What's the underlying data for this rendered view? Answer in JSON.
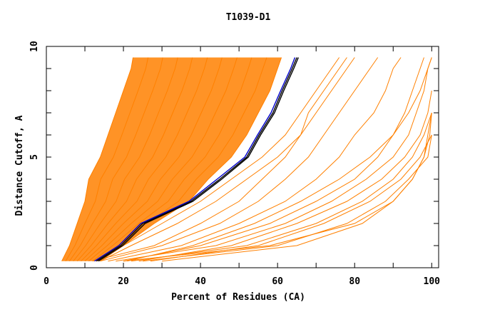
{
  "chart_data": {
    "type": "line",
    "title": "T1039-D1",
    "xlabel": "Percent of Residues (CA)",
    "ylabel": "Distance Cutoff, A",
    "xlim": [
      0,
      101.8
    ],
    "ylim": [
      0,
      10
    ],
    "x_tick_labels": [
      "0",
      "20",
      "40",
      "60",
      "80",
      "100"
    ],
    "x_tick_values": [
      0,
      20,
      40,
      60,
      80,
      100
    ],
    "x_minor_ticks": [
      10,
      30,
      50,
      70,
      90
    ],
    "y_tick_labels": [
      "0",
      "5",
      "10"
    ],
    "y_tick_values": [
      0,
      5,
      10
    ],
    "y_minor_ticks": [
      1,
      2,
      3,
      4,
      6,
      7,
      8,
      9
    ],
    "grid": false,
    "colors": {
      "models": "#ff8000",
      "highlight": "#000000",
      "highlight_alt": "#0000cc"
    },
    "y_levels": [
      0.3,
      1,
      2,
      3,
      4,
      5,
      6,
      7,
      8,
      9,
      9.5
    ],
    "dense_band": {
      "left": [
        4,
        6,
        8,
        10,
        11,
        14,
        16,
        18,
        20,
        22,
        22.5
      ],
      "right": [
        14,
        20,
        28,
        37,
        42,
        48,
        52,
        55,
        58,
        60,
        61
      ]
    },
    "model_series": [
      [
        4,
        6,
        8,
        10,
        11,
        14,
        16,
        18,
        20,
        22,
        22.5
      ],
      [
        5,
        7.4,
        10,
        12.7,
        14.1,
        17.4,
        19.6,
        21.7,
        23.8,
        25.8,
        26.4
      ],
      [
        6,
        8.8,
        12,
        15.4,
        17.2,
        20.8,
        23.2,
        25.4,
        27.6,
        29.6,
        30.2
      ],
      [
        7,
        10.2,
        14,
        18.1,
        20.3,
        24.2,
        26.8,
        29.1,
        31.4,
        33.4,
        34.1
      ],
      [
        8,
        11.6,
        16,
        20.8,
        23.4,
        27.6,
        30.4,
        32.8,
        35.2,
        37.2,
        37.9
      ],
      [
        9,
        13,
        18,
        23.5,
        26.5,
        31,
        34,
        36.5,
        39,
        41,
        41.8
      ],
      [
        10,
        14.4,
        20,
        26.2,
        29.6,
        34.4,
        37.6,
        40.2,
        42.8,
        44.8,
        45.6
      ],
      [
        11,
        15.8,
        22,
        28.9,
        32.7,
        37.8,
        41.2,
        43.9,
        46.6,
        48.6,
        49.5
      ],
      [
        12,
        17.2,
        24,
        31.6,
        35.8,
        41.2,
        44.8,
        47.6,
        50.4,
        52.4,
        53.3
      ],
      [
        13,
        18.6,
        26,
        34.3,
        38.9,
        44.6,
        48.4,
        51.3,
        54.2,
        56.2,
        57.2
      ],
      [
        14,
        20,
        28,
        37,
        42,
        48,
        52,
        55,
        58,
        60,
        61
      ],
      [
        13,
        20,
        30,
        40,
        48,
        56,
        62,
        66,
        70,
        74,
        76
      ],
      [
        14,
        22,
        34,
        44,
        52,
        60,
        66,
        70,
        74,
        78,
        80
      ],
      [
        12,
        28,
        40,
        50,
        56,
        62,
        66,
        68,
        72,
        76,
        78
      ],
      [
        14,
        30,
        45,
        55,
        62,
        68,
        72,
        76,
        80,
        84,
        86
      ],
      [
        16,
        35,
        50,
        62,
        70,
        76,
        80,
        85,
        88,
        90,
        92
      ],
      [
        20,
        40,
        58,
        70,
        80,
        86,
        90,
        93,
        95,
        97,
        98
      ],
      [
        24,
        48,
        65,
        78,
        87,
        93,
        97,
        99,
        100,
        null,
        null
      ],
      [
        27,
        55,
        72,
        84,
        92,
        97,
        100,
        null,
        null,
        null,
        null
      ],
      [
        25,
        60,
        78,
        88,
        94,
        99,
        100,
        null,
        null,
        null,
        null
      ],
      [
        30,
        65,
        82,
        90,
        95,
        98,
        99,
        100,
        null,
        null,
        null
      ],
      [
        20,
        58,
        80,
        90,
        95,
        98,
        99.5,
        100,
        null,
        null,
        null
      ],
      [
        22,
        52,
        70,
        82,
        90,
        95,
        98,
        100,
        null,
        null,
        null
      ],
      [
        18,
        44,
        62,
        74,
        83,
        90,
        94,
        96,
        98,
        99,
        100
      ],
      [
        21,
        38,
        54,
        66,
        76,
        84,
        90,
        94,
        97,
        99,
        100
      ]
    ],
    "highlight_series": [
      [
        13,
        19.3,
        25,
        37.5,
        45,
        52,
        55.2,
        58.8,
        61.2,
        63.8,
        65
      ],
      [
        12.5,
        18.8,
        24.5,
        37,
        44.3,
        51.5,
        54.8,
        58.3,
        60.8,
        63.4,
        64.5
      ],
      [
        13.5,
        19.8,
        25.6,
        38,
        45.5,
        52.4,
        55.6,
        59.2,
        61.6,
        64.2,
        65.4
      ]
    ]
  }
}
